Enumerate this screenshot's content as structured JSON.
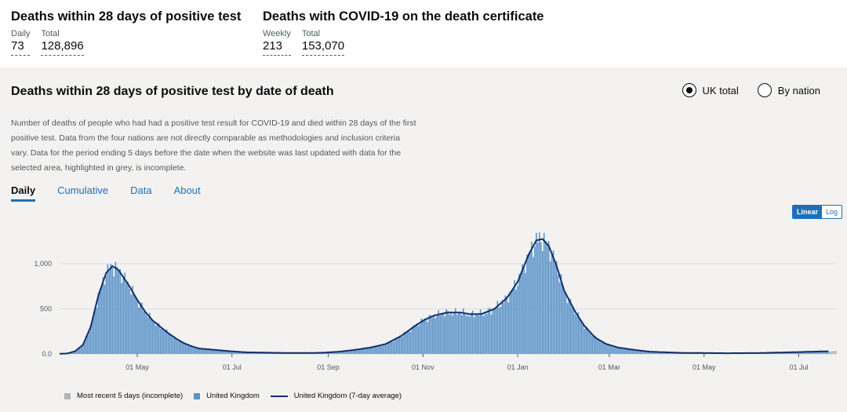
{
  "headline_left": {
    "title": "Deaths within 28 days of positive test",
    "metrics": [
      {
        "label": "Daily",
        "value": "73"
      },
      {
        "label": "Total",
        "value": "128,896"
      }
    ]
  },
  "headline_right": {
    "title": "Deaths with COVID-19 on the death certificate",
    "metrics": [
      {
        "label": "Weekly",
        "value": "213"
      },
      {
        "label": "Total",
        "value": "153,070"
      }
    ]
  },
  "card": {
    "title": "Deaths within 28 days of positive test by date of death",
    "radio_options": [
      {
        "label": "UK total",
        "selected": true
      },
      {
        "label": "By nation",
        "selected": false
      }
    ],
    "description": "Number of deaths of people who had had a positive test result for COVID-19 and died within 28 days of the first positive test. Data from the four nations are not directly comparable as methodologies and inclusion criteria vary. Data for the period ending 5 days before the date when the website was last updated with data for the selected area, highlighted in grey, is incomplete.",
    "tabs": [
      {
        "label": "Daily",
        "active": true
      },
      {
        "label": "Cumulative",
        "active": false
      },
      {
        "label": "Data",
        "active": false
      },
      {
        "label": "About",
        "active": false
      }
    ],
    "scale_toggle": {
      "linear": "Linear",
      "log": "Log",
      "active": "linear"
    }
  },
  "legend": {
    "incomplete": "Most recent 5 days (incomplete)",
    "daily": "United Kingdom",
    "average": "United Kingdom (7-day average)"
  },
  "colors": {
    "bar": "#5a93c9",
    "line": "#12306b",
    "incomplete": "#b1b4b6",
    "accent": "#1d70b8"
  },
  "chart_data": {
    "type": "bar",
    "ylim": [
      0,
      1350
    ],
    "yticks": [
      {
        "value": 0,
        "label": "0.0"
      },
      {
        "value": 500,
        "label": "500"
      },
      {
        "value": 1000,
        "label": "1,000"
      }
    ],
    "xticks": [
      {
        "label": "01 May",
        "day": 50
      },
      {
        "label": "01 Jul",
        "day": 111
      },
      {
        "label": "01 Sep",
        "day": 173
      },
      {
        "label": "01 Nov",
        "day": 234
      },
      {
        "label": "01 Jan",
        "day": 295
      },
      {
        "label": "01 Mar",
        "day": 354
      },
      {
        "label": "01 May",
        "day": 415
      },
      {
        "label": "01 Jul",
        "day": 476
      }
    ],
    "day_range": [
      0,
      500
    ],
    "incomplete_days": 5,
    "average_keyframes": [
      [
        0,
        2
      ],
      [
        5,
        5
      ],
      [
        10,
        30
      ],
      [
        15,
        100
      ],
      [
        20,
        300
      ],
      [
        25,
        650
      ],
      [
        30,
        900
      ],
      [
        34,
        975
      ],
      [
        38,
        930
      ],
      [
        45,
        750
      ],
      [
        50,
        600
      ],
      [
        55,
        470
      ],
      [
        60,
        370
      ],
      [
        65,
        300
      ],
      [
        70,
        230
      ],
      [
        75,
        170
      ],
      [
        80,
        120
      ],
      [
        85,
        85
      ],
      [
        90,
        60
      ],
      [
        100,
        45
      ],
      [
        110,
        30
      ],
      [
        120,
        18
      ],
      [
        140,
        12
      ],
      [
        160,
        10
      ],
      [
        170,
        14
      ],
      [
        180,
        25
      ],
      [
        190,
        45
      ],
      [
        200,
        70
      ],
      [
        210,
        110
      ],
      [
        220,
        200
      ],
      [
        228,
        300
      ],
      [
        235,
        380
      ],
      [
        242,
        430
      ],
      [
        250,
        460
      ],
      [
        258,
        460
      ],
      [
        265,
        440
      ],
      [
        272,
        445
      ],
      [
        280,
        500
      ],
      [
        288,
        620
      ],
      [
        295,
        800
      ],
      [
        302,
        1100
      ],
      [
        307,
        1260
      ],
      [
        311,
        1275
      ],
      [
        315,
        1200
      ],
      [
        320,
        980
      ],
      [
        325,
        700
      ],
      [
        332,
        470
      ],
      [
        338,
        310
      ],
      [
        345,
        180
      ],
      [
        352,
        110
      ],
      [
        360,
        70
      ],
      [
        370,
        45
      ],
      [
        380,
        25
      ],
      [
        400,
        12
      ],
      [
        430,
        8
      ],
      [
        450,
        10
      ],
      [
        470,
        18
      ],
      [
        485,
        25
      ],
      [
        495,
        30
      ],
      [
        500,
        32
      ]
    ]
  }
}
